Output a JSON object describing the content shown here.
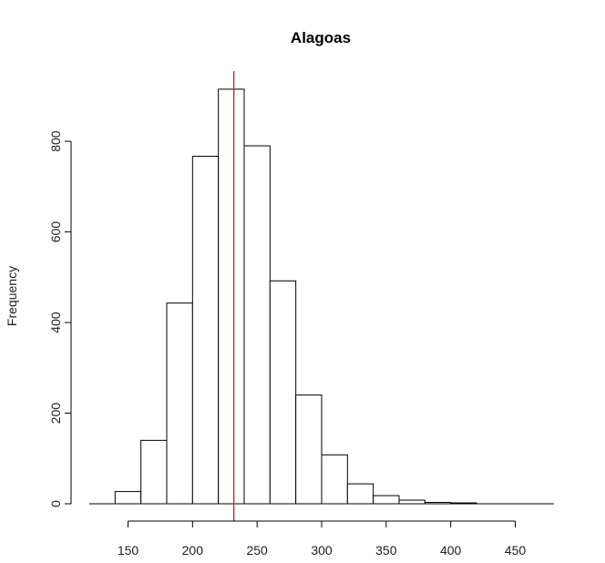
{
  "chart_data": {
    "type": "bar",
    "title": "Alagoas",
    "xlabel": "",
    "ylabel": "Frequency",
    "bin_edges": [
      140,
      160,
      180,
      200,
      220,
      240,
      260,
      280,
      300,
      320,
      340,
      360,
      380,
      400,
      420
    ],
    "values": [
      27,
      140,
      443,
      767,
      915,
      790,
      492,
      240,
      108,
      44,
      18,
      8,
      3,
      2
    ],
    "xlim": [
      120,
      480
    ],
    "ylim": [
      0,
      955
    ],
    "x_ticks": [
      150,
      200,
      250,
      300,
      350,
      400,
      450
    ],
    "y_ticks": [
      0,
      200,
      400,
      600,
      800
    ],
    "reference_line": {
      "x": 232,
      "color": "#cc2222"
    },
    "grid": false
  }
}
